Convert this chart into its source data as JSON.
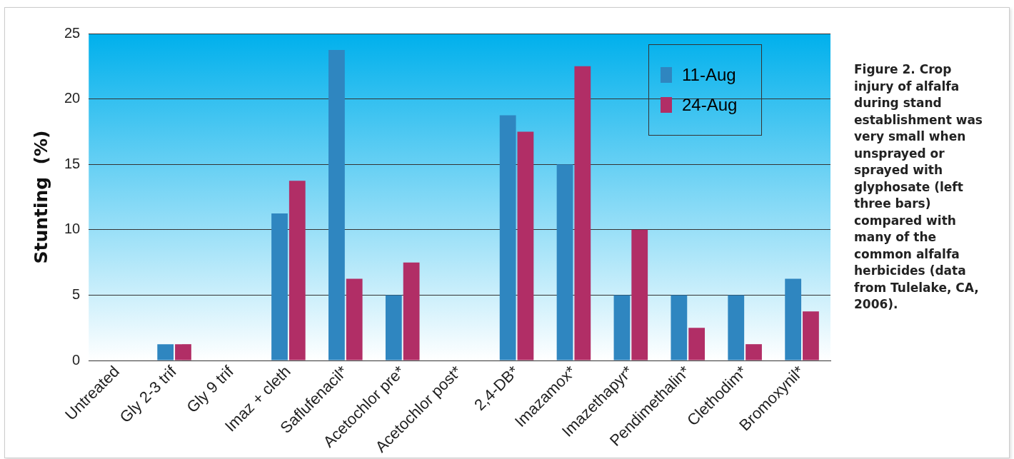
{
  "chart_data": {
    "type": "bar",
    "title": "Figure 2. Crop injury of alfalfa during stand establishment was very small when unsprayed or sprayed with glyphosate (left three bars) compared with many of the common alfalfa herbicides (data from Tulelake, CA, 2006).",
    "ylabel": "Stunting  (%)",
    "categories": [
      "Untreated",
      "Gly 2-3 trif",
      "Gly 9 trif",
      "Imaz + cleth",
      "Saflufenacil*",
      "Acetochlor pre*",
      "Acetochlor post*",
      "2,4-DB*",
      "Imazamox*",
      "Imazethapyr*",
      "Pendimethalin*",
      "Clethodim*",
      "Bromoxynil*"
    ],
    "series": [
      {
        "name": "11-Aug",
        "color": "#2f86c0",
        "values": [
          0,
          1.25,
          0,
          11.25,
          23.75,
          5,
          0,
          18.75,
          15,
          5,
          5,
          5,
          6.25
        ]
      },
      {
        "name": "24-Aug",
        "color": "#b12e66",
        "values": [
          0,
          1.25,
          0,
          13.75,
          6.25,
          7.5,
          0,
          17.5,
          22.5,
          10,
          2.5,
          1.25,
          3.75
        ]
      }
    ],
    "ylim": [
      0,
      25
    ],
    "yticks": [
      0,
      5,
      10,
      15,
      20,
      25
    ],
    "grid": "y",
    "legend": "top right"
  }
}
